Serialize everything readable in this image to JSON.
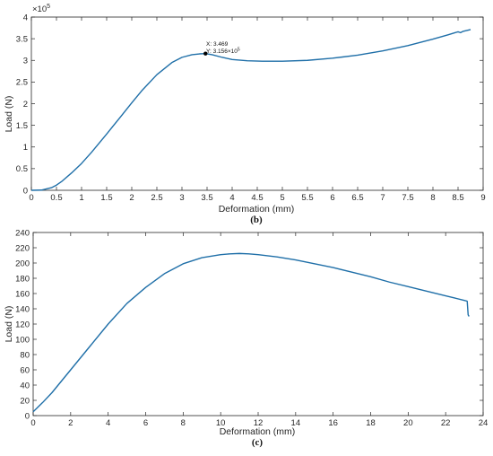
{
  "colors": {
    "line": "#1f6fa8",
    "axis": "#262626",
    "marker": "#000000"
  },
  "panels": [
    {
      "caption": "(b)",
      "exponent_label": "×10",
      "exponent_power": "5",
      "datatip": {
        "x_text": "X: 3.469",
        "y_text": "Y: 3.156×10",
        "y_power": "5"
      },
      "chart_data": {
        "type": "line",
        "xlabel": "Deformation (mm)",
        "ylabel": "Load (N)",
        "xlim": [
          0,
          9
        ],
        "ylim": [
          0,
          4
        ],
        "y_scale_factor": 100000,
        "xticks": [
          0,
          0.5,
          1,
          1.5,
          2,
          2.5,
          3,
          3.5,
          4,
          4.5,
          5,
          5.5,
          6,
          6.5,
          7,
          7.5,
          8,
          8.5,
          9
        ],
        "yticks": [
          0,
          0.5,
          1,
          1.5,
          2,
          2.5,
          3,
          3.5,
          4
        ],
        "grid": false,
        "datatip_point": {
          "x": 3.469,
          "y": 3.156
        },
        "series": [
          {
            "x": [
              0,
              0.2,
              0.4,
              0.5,
              0.6,
              0.8,
              1.0,
              1.2,
              1.5,
              1.8,
              2.0,
              2.2,
              2.5,
              2.8,
              3.0,
              3.2,
              3.35,
              3.469,
              3.6,
              3.8,
              4.0,
              4.3,
              4.6,
              5.0,
              5.5,
              6.0,
              6.5,
              7.0,
              7.5,
              8.0,
              8.3,
              8.5,
              8.55,
              8.6,
              8.75
            ],
            "y": [
              0,
              0.005,
              0.06,
              0.12,
              0.2,
              0.4,
              0.62,
              0.88,
              1.3,
              1.73,
              2.02,
              2.3,
              2.67,
              2.95,
              3.07,
              3.13,
              3.15,
              3.156,
              3.13,
              3.07,
              3.02,
              2.99,
              2.98,
              2.98,
              3.0,
              3.05,
              3.12,
              3.22,
              3.34,
              3.49,
              3.59,
              3.66,
              3.64,
              3.67,
              3.71
            ]
          }
        ]
      }
    },
    {
      "caption": "(c)",
      "chart_data": {
        "type": "line",
        "xlabel": "Deformation (mm)",
        "ylabel": "Load (N)",
        "xlim": [
          0,
          24
        ],
        "ylim": [
          0,
          240
        ],
        "xticks": [
          0,
          2,
          4,
          6,
          8,
          10,
          12,
          14,
          16,
          18,
          20,
          22,
          24
        ],
        "yticks": [
          0,
          20,
          40,
          60,
          80,
          100,
          120,
          140,
          160,
          180,
          200,
          220,
          240
        ],
        "grid": false,
        "series": [
          {
            "x": [
              0,
              0.5,
              1,
              2,
              3,
              4,
              5,
              6,
              7,
              8,
              9,
              10,
              10.5,
              11,
              11.5,
              12,
              13,
              14,
              15,
              16,
              17,
              18,
              19,
              20,
              21,
              22,
              22.5,
              23,
              23.15,
              23.2,
              23.25
            ],
            "y": [
              5,
              17,
              30,
              60,
              90,
              120,
              147,
              168,
              186,
              199,
              207,
              211,
              212,
              212.5,
              212,
              211,
              208,
              204,
              199,
              194,
              188,
              182,
              175,
              169,
              163,
              157,
              154,
              151,
              150,
              132,
              130
            ]
          }
        ]
      }
    }
  ]
}
